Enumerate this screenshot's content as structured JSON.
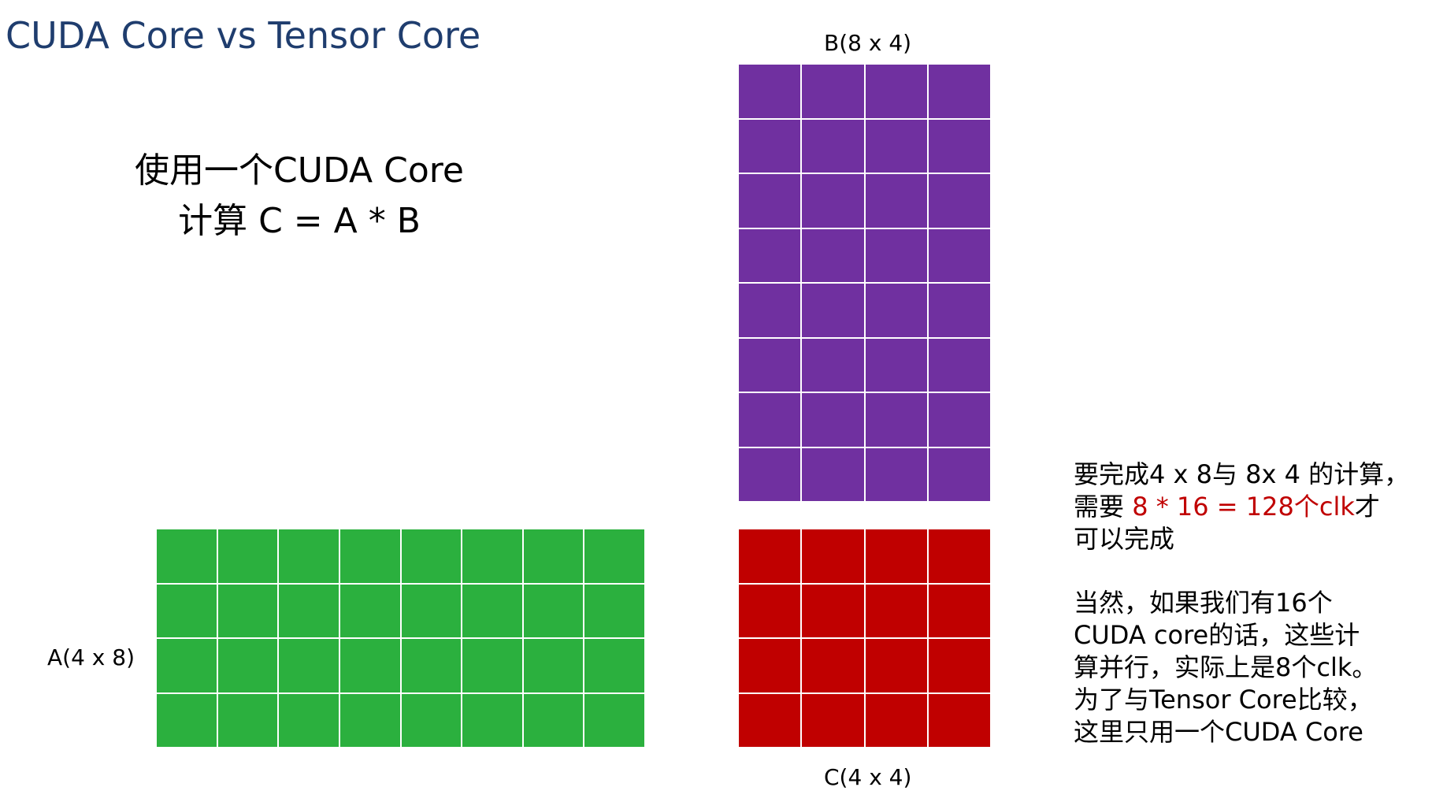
{
  "title": "CUDA Core vs Tensor Core",
  "subtitle": {
    "line1": "使用一个CUDA Core",
    "line2": "计算 C = A * B"
  },
  "matrices": {
    "a": {
      "label": "A(4 x 8)",
      "rows": 4,
      "cols": 8,
      "color": "#2bb03e"
    },
    "b": {
      "label": "B(8 x 4)",
      "rows": 8,
      "cols": 4,
      "color": "#7030a0"
    },
    "c": {
      "label": "C(4 x 4)",
      "rows": 4,
      "cols": 4,
      "color": "#c00000"
    }
  },
  "note1": {
    "line1": "要完成4 x 8与 8x 4 的计算，",
    "line2_prefix": "需要 ",
    "line2_highlight": "8 * 16 = 128个clk",
    "line2_suffix": "才",
    "line3": "可以完成",
    "highlight_color": "#c00000"
  },
  "note2": {
    "lines": [
      "当然，如果我们有16个",
      "CUDA core的话，这些计",
      "算并行，实际上是8个clk。",
      "为了与Tensor Core比较，",
      "这里只用一个CUDA Core"
    ]
  }
}
